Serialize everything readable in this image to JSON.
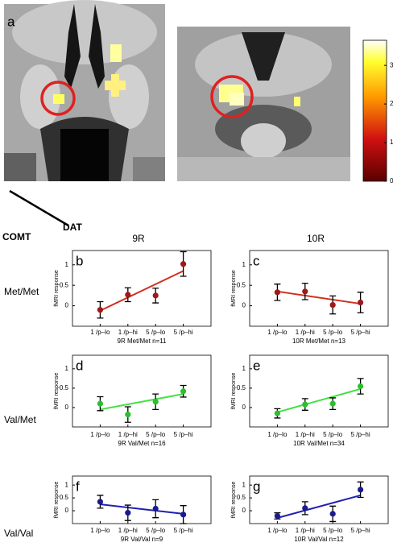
{
  "figure": {
    "panel_label": "a",
    "corner_row_label": "COMT",
    "corner_col_label": "DAT",
    "columns": [
      "9R",
      "10R"
    ],
    "rows": [
      "Met/Met",
      "Val/Met",
      "Val/Val"
    ],
    "colorbar": {
      "lim": [
        0,
        3.65
      ],
      "ticks": [
        0,
        1,
        2,
        3
      ]
    }
  },
  "chart_data": [
    {
      "type": "errorbar",
      "panel": "b",
      "x_label": "9R Met/Met n=11",
      "y_label": "fMRI response",
      "categories": [
        "1 /p–lo",
        "1 /p–hi",
        "5 /p–lo",
        "5 /p–hi"
      ],
      "ylim": [
        -0.5,
        1.35
      ],
      "yticks": [
        0,
        0.5,
        1
      ],
      "line_color": "#d03020",
      "point_color": "#a01818",
      "values": [
        -0.1,
        0.27,
        0.25,
        1.02
      ],
      "errors": [
        0.2,
        0.17,
        0.18,
        0.3
      ],
      "fit": [
        -0.12,
        0.85
      ]
    },
    {
      "type": "errorbar",
      "panel": "c",
      "x_label": "10R Met/Met n=13",
      "y_label": "fMRI response",
      "categories": [
        "1 /p–lo",
        "1 /p–hi",
        "5 /p–lo",
        "5 /p–hi"
      ],
      "ylim": [
        -0.5,
        1.35
      ],
      "yticks": [
        0,
        0.5,
        1
      ],
      "line_color": "#d03020",
      "point_color": "#a01818",
      "values": [
        0.33,
        0.35,
        0.02,
        0.08
      ],
      "errors": [
        0.2,
        0.2,
        0.22,
        0.25
      ],
      "fit": [
        0.35,
        0.05
      ]
    },
    {
      "type": "errorbar",
      "panel": "d",
      "x_label": "9R Val/Met n=16",
      "y_label": "fMRI response",
      "categories": [
        "1 /p–lo",
        "1 /p–hi",
        "5 /p–lo",
        "5 /p–hi"
      ],
      "ylim": [
        -0.5,
        1.35
      ],
      "yticks": [
        0,
        0.5,
        1
      ],
      "line_color": "#44e044",
      "point_color": "#2cbf2c",
      "values": [
        0.1,
        -0.18,
        0.15,
        0.42
      ],
      "errors": [
        0.18,
        0.2,
        0.2,
        0.15
      ],
      "fit": [
        -0.05,
        0.35
      ]
    },
    {
      "type": "errorbar",
      "panel": "e",
      "x_label": "10R Val/Met n=34",
      "y_label": "fMRI response",
      "categories": [
        "1 /p–lo",
        "1 /p–hi",
        "5 /p–lo",
        "5 /p–hi"
      ],
      "ylim": [
        -0.5,
        1.35
      ],
      "yticks": [
        0,
        0.5,
        1
      ],
      "line_color": "#44e044",
      "point_color": "#2cbf2c",
      "values": [
        -0.15,
        0.08,
        0.1,
        0.55
      ],
      "errors": [
        0.12,
        0.15,
        0.15,
        0.2
      ],
      "fit": [
        -0.12,
        0.48
      ]
    },
    {
      "type": "errorbar",
      "panel": "f",
      "x_label": "9R Val/Val n=9",
      "y_label": "fMRI response",
      "categories": [
        "1 /p–lo",
        "1 /p–hi",
        "5 /p–lo",
        "5 /p–hi"
      ],
      "ylim": [
        -0.5,
        1.35
      ],
      "yticks": [
        0,
        0.5,
        1
      ],
      "line_color": "#2020b0",
      "point_color": "#1a1a90",
      "values": [
        0.35,
        -0.08,
        0.08,
        -0.15
      ],
      "errors": [
        0.25,
        0.3,
        0.35,
        0.35
      ],
      "fit": [
        0.25,
        -0.12
      ]
    },
    {
      "type": "errorbar",
      "panel": "g",
      "x_label": "10R Val/Val n=12",
      "y_label": "fMRI response",
      "categories": [
        "1 /p–lo",
        "1 /p–hi",
        "5 /p–lo",
        "5 /p–hi"
      ],
      "ylim": [
        -0.5,
        1.35
      ],
      "yticks": [
        0,
        0.5,
        1
      ],
      "line_color": "#2020b0",
      "point_color": "#1a1a90",
      "values": [
        -0.2,
        0.1,
        -0.12,
        0.82
      ],
      "errors": [
        0.12,
        0.25,
        0.3,
        0.3
      ],
      "fit": [
        -0.28,
        0.6
      ]
    }
  ]
}
